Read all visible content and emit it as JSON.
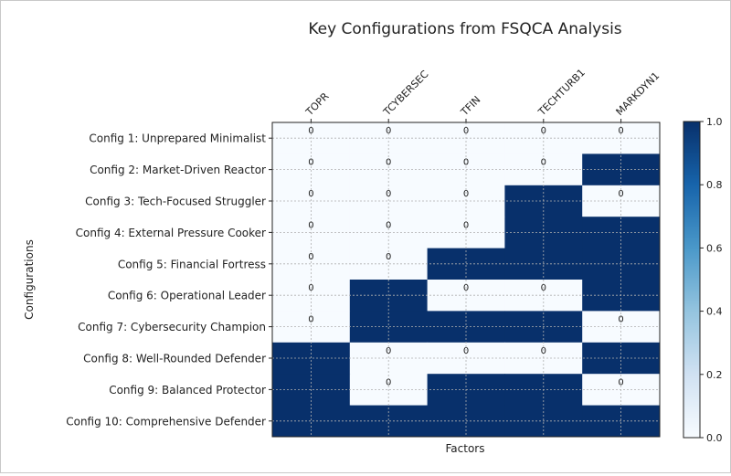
{
  "chart_data": {
    "type": "heatmap",
    "title": "Key Configurations from FSQCA Analysis",
    "xlabel": "Factors",
    "ylabel": "Configurations",
    "columns": [
      "TOPR",
      "TCYBERSEC",
      "TFIN",
      "TECHTURB1",
      "MARKDYN1"
    ],
    "rows": [
      "Config 1: Unprepared Minimalist",
      "Config 2: Market-Driven Reactor",
      "Config 3: Tech-Focused Struggler",
      "Config 4: External Pressure Cooker",
      "Config 5: Financial Fortress",
      "Config 6: Operational Leader",
      "Config 7: Cybersecurity Champion",
      "Config 8: Well-Rounded Defender",
      "Config 9: Balanced Protector",
      "Config 10: Comprehensive Defender"
    ],
    "values": [
      [
        0,
        0,
        0,
        0,
        0
      ],
      [
        0,
        0,
        0,
        0,
        1
      ],
      [
        0,
        0,
        0,
        1,
        0
      ],
      [
        0,
        0,
        0,
        1,
        1
      ],
      [
        0,
        0,
        1,
        1,
        1
      ],
      [
        0,
        1,
        0,
        0,
        1
      ],
      [
        0,
        1,
        1,
        1,
        0
      ],
      [
        1,
        0,
        0,
        0,
        1
      ],
      [
        1,
        0,
        1,
        1,
        0
      ],
      [
        1,
        1,
        1,
        1,
        1
      ]
    ],
    "zero_label": "0",
    "colorbar": {
      "ticks": [
        "0.0",
        "0.2",
        "0.4",
        "0.6",
        "0.8",
        "1.0"
      ],
      "range": [
        0,
        1
      ],
      "low_color": "#f7fbff",
      "high_color": "#08306b"
    },
    "grid": true
  }
}
